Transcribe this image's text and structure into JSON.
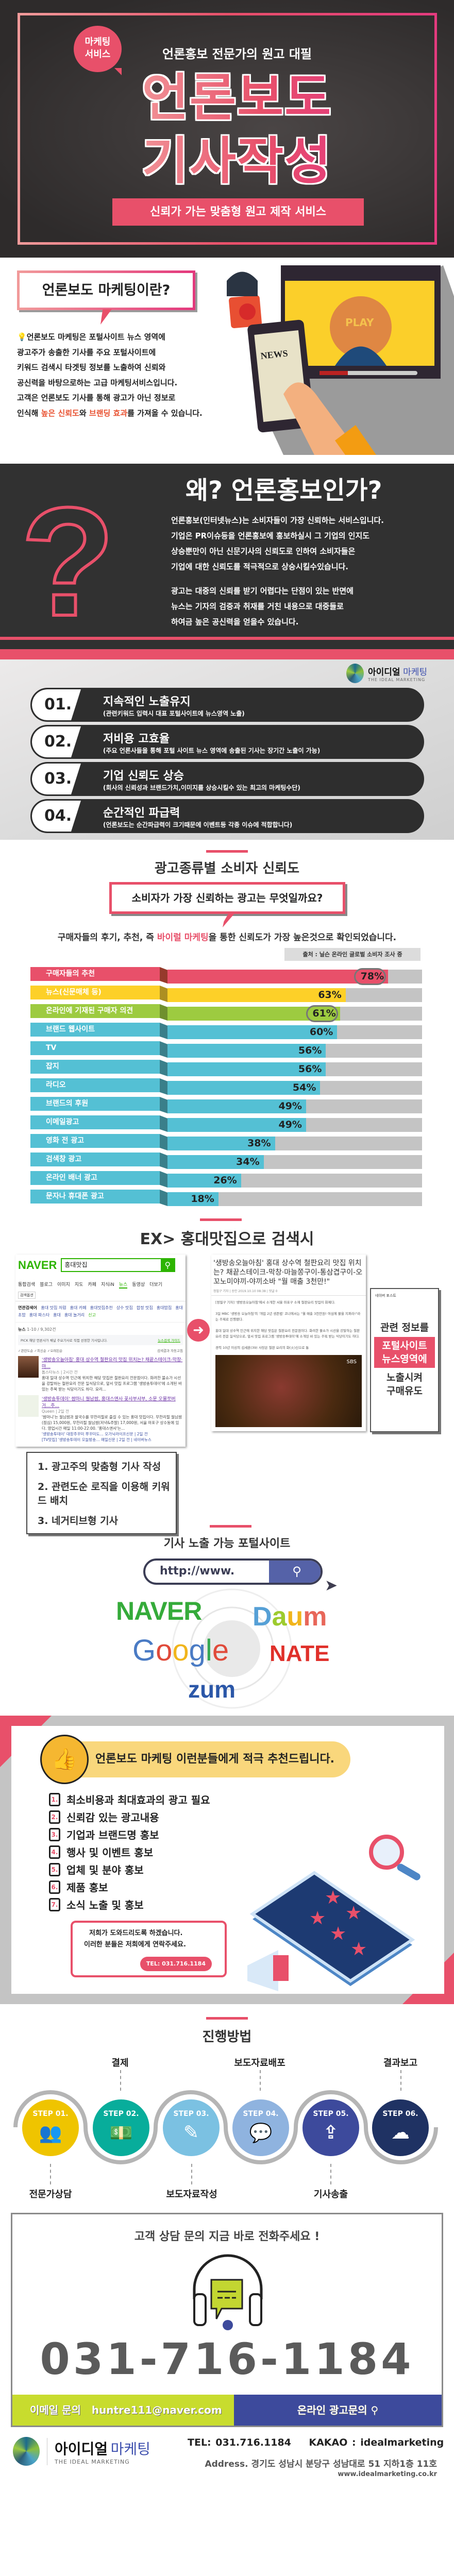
{
  "hero": {
    "badge_line1": "마케팅",
    "badge_line2": "서비스",
    "subtitle": "언론홍보 전문가의 원고 대필",
    "title_line1": "언론보도",
    "title_line2": "기사작성",
    "ribbon": "신뢰가 가는 맞춤형 원고 제작 서비스"
  },
  "intro": {
    "heading": "언론보도 마케팅이란?",
    "lines": [
      "언론보도 마케팅은 포털사이트 뉴스 영역에",
      "광고주가 송출한 기사를 주요 포털사이트에",
      "키워드 검색시 타겟팅 정보를 노출하여 신뢰와",
      "공신력을 바탕으로하는 고급 마케팅서비스입니다.",
      "고객은 언론보도 기사를 통해 광고가 아닌 정보로"
    ],
    "last_line": {
      "a": "인식해 ",
      "hl1": "높은 신뢰도",
      "b": "와 ",
      "hl2": "브랜딩 효과",
      "c": "를 가져올 수 있습니다."
    },
    "illustration": {
      "news": "NEWS",
      "play": "PLAY"
    }
  },
  "why": {
    "title": "왜? 언론홍보인가?",
    "para1": [
      "언론홍보(인터넷뉴스)는 소비자들이 가장 신뢰하는 서비스입니다.",
      "기업은 PR이슈등을 언론홍보에 홍보하실시 그 기업의 인지도",
      "상승뿐만이 아닌 신문기사의 신뢰도로 인하여 소비자들은",
      "기업에 대한 신뢰도를 적극적으로 상승시킬수있습니다."
    ],
    "para2": [
      "광고는 대중의 신뢰를 받기 어렵다는 단점이 있는 반면에",
      "뉴스는 기자의 검증과 취재를 거친 내용으로 대중들로",
      "하여금 높은 공신력을 얻을수 있습니다."
    ]
  },
  "brand": {
    "name": "아이디얼",
    "accent": "마케팅",
    "tagline": "THE IDEAL MARKETING"
  },
  "benefits": [
    {
      "num": "01.",
      "title": "지속적인 노출유지",
      "desc": "(관련키워드 입력시 대표 포털사이트에 뉴스영역 노출)"
    },
    {
      "num": "02.",
      "title": "저비용 고효율",
      "desc": "(주요 언론사들을 통해 포털 사이트 뉴스 영역에 송출된 기사는 장기간 노출이 가능)"
    },
    {
      "num": "03.",
      "title": "기업 신뢰도 상승",
      "desc": "(회사의 신뢰성과 브랜드가치,이미지를 상승시킬수 있는 최고의 마케팅수단)"
    },
    {
      "num": "04.",
      "title": "순간적인 파급력",
      "desc": "(언론보도는 순간파급력이 크기때문에 이벤트등 각종 이슈에 적합합니다)"
    }
  ],
  "trust": {
    "title": "광고종류별 소비자 신뢰도",
    "question": "소비자가 가장 신뢰하는 광고는 무엇일까요?",
    "summary": {
      "a": "구매자들의 후기, 추천, 즉 ",
      "hl": "바이럴 마케팅",
      "b": "을 통한 신뢰도가 가장 높은것으로 확인되었습니다."
    },
    "source": "출처 : 닐슨 온라인 글로벌 소비자 조사 중"
  },
  "chart_data": {
    "type": "bar",
    "orientation": "horizontal",
    "categories": [
      "구매자들의 추천",
      "뉴스(신문매체 등)",
      "온라인에 기재된 구매자 의견",
      "브랜드 웹사이트",
      "TV",
      "잡지",
      "라디오",
      "브랜드의 후원",
      "이메일광고",
      "영화 전 광고",
      "검색창 광고",
      "온라인 배너 광고",
      "문자나 휴대폰 광고"
    ],
    "values": [
      78,
      63,
      61,
      60,
      56,
      56,
      54,
      49,
      49,
      38,
      34,
      26,
      18
    ],
    "value_labels": [
      "78%",
      "63%",
      "61%",
      "60%",
      "56%",
      "56%",
      "54%",
      "49%",
      "49%",
      "38%",
      "34%",
      "26%",
      "18%"
    ],
    "colors": [
      "#e8506a",
      "#fdd028",
      "#9dcb40",
      "#54c0d4",
      "#54c0d4",
      "#54c0d4",
      "#54c0d4",
      "#54c0d4",
      "#54c0d4",
      "#54c0d4",
      "#54c0d4",
      "#54c0d4",
      "#54c0d4"
    ],
    "highlighted": [
      "구매자들의 추천",
      "온라인에 기재된 구매자 의견"
    ],
    "unit": "%",
    "legend": "none"
  },
  "example": {
    "title": "EX> 홍대맛집으로 검색시",
    "naver": {
      "logo": "NAVER",
      "query": "홍대맛집",
      "tabs": [
        "통합검색",
        "블로그",
        "이미지",
        "지도",
        "카페",
        "지식iN",
        "뉴스",
        "동영상",
        "더보기"
      ],
      "options": "검색옵션",
      "related_label": "연관검색어",
      "related": [
        "홍대 맛집 저렴",
        "홍대 카페",
        "홍대맛집추천",
        "상수 맛집",
        "합정 맛집",
        "홍대밥집",
        "홍대초밥",
        "홍대 파스타",
        "홍대",
        "홍대 놀거리"
      ],
      "report": "신고",
      "news_label": "뉴스",
      "news_count": "1-10 / 9,302건",
      "pick": "PICK 해당 언론사가 채널 주요기사로 직접 선정한 기사입니다.",
      "guide": "뉴스검색 가이드",
      "sort": "✓관련도순  ✓최신순  ✓오래된순",
      "auto": "검색결과 자동고침",
      "results": [
        {
          "title": "'생방송오늘아침' 홍대 상수역 철판요리 맛집 위치는? 채끝스테이크-막창·마...",
          "meta": "톱스타뉴스 | 2시간 전",
          "body": "홍대 일대 상수역 인근에 위치한 해당 맛집은 철판요리 전문점이다. 화려한 불쇼가 시선을 강탈하는 철판요리 전문 일식당으로, 앞서 맛집 프로그램 '생방송투데이'에 소개된 바 있는 주목 받는 식당이기도 하다. 요리..."
        },
        {
          "title": "'생방송투데이' 쌈마니 월남쌈, 홍대스앤사 꽃샤부샤부, 소문 오물쪼버거…주...",
          "meta": "Queen | 2일 전",
          "body": "'쌈마니'는 월남쌈과 쌀국수를 무한리필로 즐길 수 있는 홍대 맛집이다. 무한리필 월남쌈(점심) 15,000원, 무한리필 월남쌈(저녁&주말) 17,000원, 서울 마포구 상수동에 있다. 영업시간 매일 11:00-22:00. '홍대스앤사'는..."
        }
      ],
      "sub_results": [
        "'생방송투데이' 대창주꾸미 쭈꾸미도… 오가닉라이프신문 | 2일 전",
        "[TV맛집] '생방송투데이 오늘방송… 매일신문 | 2일 전 | 네이버뉴스"
      ]
    },
    "article": {
      "title": "'생방송오늘아침' 홍대 상수역 철판요리 맛집 위치는? 채끝스테이크-막창·마늘쫑구이-통삼겹구이-오꼬노미야끼-야끼소바 \"월 매출 3천만!\"",
      "meta": "정필구 기자 | 승인 2019.10.10 08:38 | 댓글 0",
      "p1": "[정필구 기자] '생방송오늘아침'에서 소개한 서울 마포구 소재 철판요리 맛집이 화제다.",
      "p2": "3일 MBC '생방송 오늘아침'의 '개업 2년 생존법' 코너에서는 \"월 매출 3천만원! 여심에 불을 지펴라!\"라는 주제로 진행됐다.",
      "p3": "홍대 일대 상수역 인근에 위치한 해당 맛집은 철판요리 전문점이다. 화려한 불쇼가 시선을 강탈하는 철판요리 전문 일식당으로, 앞서 맛집 프로그램 '생방송투데이'에 소개된 바 있는 주목 받는 식당이기도 하다.",
      "p4": "경력 10년 이상의 김세훈(39) 사장은 철판 요리의 화(火)신으로 통",
      "sidebar": "네이버 포스트",
      "video_tag": "SBS"
    },
    "steps": [
      "1. 광고주의 맞춤형 기사 작성",
      "2. 관련도순 로직을 이용해 키워드 배치",
      "3. 네거티브형 기사"
    ],
    "callout": {
      "a": "관련 정보를",
      "b1": "포털사이트",
      "b2": "뉴스영역에",
      "c1": "노출시켜",
      "c2": "구매유도"
    }
  },
  "portals": {
    "title": "기사 노출 가능 포털사이트",
    "url": "http://www.",
    "logos": {
      "naver": "NAVER",
      "daum": [
        "D",
        "a",
        "u",
        "m"
      ],
      "google": [
        "G",
        "o",
        "o",
        "g",
        "l",
        "e"
      ],
      "nate": "NATE",
      "zum": "zum"
    }
  },
  "recommend": {
    "heading": "언론보도 마케팅 이런분들에게 적극 추천드립니다.",
    "items": [
      "최소비용과 최대효과의 광고 필요",
      "신뢰감 있는 광고내용",
      "기업과 브랜드명 홍보",
      "행사 및 이벤트 홍보",
      "업체 및 분야 홍보",
      "제품 홍보",
      "소식 노출 및 홍보"
    ],
    "numbers": [
      "1.",
      "2.",
      "3.",
      "4.",
      "5.",
      "6.",
      "7."
    ],
    "bubble_line1": "저희가 도와드리도록 하겠습니다.",
    "bubble_line2": "이러한 분들은 저희에게 연락주세요.",
    "tel": "TEL: 031.716.1184"
  },
  "process": {
    "title": "진행방법",
    "steps": [
      {
        "step": "STEP 01.",
        "label": "전문가상담",
        "color": "#efc400"
      },
      {
        "step": "STEP 02.",
        "label": "결제",
        "color": "#08ad9b"
      },
      {
        "step": "STEP 03.",
        "label": "보도자료작성",
        "color": "#7bc1e2"
      },
      {
        "step": "STEP 04.",
        "label": "보도자료배포",
        "color": "#8fb3df"
      },
      {
        "step": "STEP 05.",
        "label": "기사송출",
        "color": "#3d4a9c"
      },
      {
        "step": "STEP 06.",
        "label": "결과보고",
        "color": "#1f3263"
      }
    ]
  },
  "contact": {
    "title": "고객 상담 문의 지금 바로 전화주세요 !",
    "phone": "031-716-1184",
    "email_label": "이메일 문의",
    "email": "huntre111@naver.com",
    "online": "온라인 광고문의"
  },
  "footer": {
    "tel": "TEL: 031.716.1184",
    "kakao": "KAKAO : idealmarketing",
    "address": "Address. 경기도 성남시 분당구 성남대로 51 지하1층 11호",
    "url": "www.idealmarketing.co.kr"
  },
  "colors": {
    "accent": "#e8506a",
    "dark": "#313131",
    "email_bar": "#c8dc2e",
    "online_bar": "#3d4a9c"
  }
}
